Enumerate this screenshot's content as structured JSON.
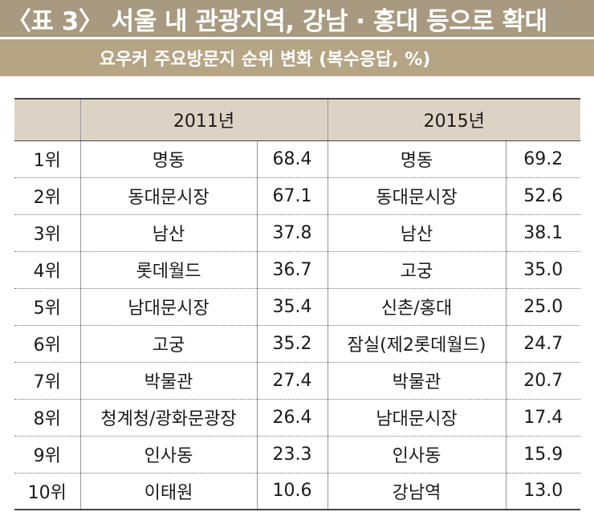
{
  "header": {
    "title": "〈표 3〉 서울 내 관광지역, 강남 · 홍대 등으로 확대",
    "subtitle": "요우커 주요방문지 순위 변화 (복수응답, %)"
  },
  "colors": {
    "title_bg": "#a89a80",
    "subtitle_bg": "#b5a585",
    "header_row_bg": "#ddd3c4"
  },
  "table": {
    "columns": [
      "",
      "2011년",
      "2015년"
    ],
    "rows": [
      {
        "rank": "1위",
        "place_2011": "명동",
        "value_2011": "68.4",
        "place_2015": "명동",
        "value_2015": "69.2"
      },
      {
        "rank": "2위",
        "place_2011": "동대문시장",
        "value_2011": "67.1",
        "place_2015": "동대문시장",
        "value_2015": "52.6"
      },
      {
        "rank": "3위",
        "place_2011": "남산",
        "value_2011": "37.8",
        "place_2015": "남산",
        "value_2015": "38.1"
      },
      {
        "rank": "4위",
        "place_2011": "롯데월드",
        "value_2011": "36.7",
        "place_2015": "고궁",
        "value_2015": "35.0"
      },
      {
        "rank": "5위",
        "place_2011": "남대문시장",
        "value_2011": "35.4",
        "place_2015": "신촌/홍대",
        "value_2015": "25.0"
      },
      {
        "rank": "6위",
        "place_2011": "고궁",
        "value_2011": "35.2",
        "place_2015": "잠실(제2롯데월드)",
        "value_2015": "24.7"
      },
      {
        "rank": "7위",
        "place_2011": "박물관",
        "value_2011": "27.4",
        "place_2015": "박물관",
        "value_2015": "20.7"
      },
      {
        "rank": "8위",
        "place_2011": "청계청/광화문광장",
        "value_2011": "26.4",
        "place_2015": "남대문시장",
        "value_2015": "17.4"
      },
      {
        "rank": "9위",
        "place_2011": "인사동",
        "value_2011": "23.3",
        "place_2015": "인사동",
        "value_2015": "15.9"
      },
      {
        "rank": "10위",
        "place_2011": "이태원",
        "value_2011": "10.6",
        "place_2015": "강남역",
        "value_2015": "13.0"
      }
    ]
  }
}
